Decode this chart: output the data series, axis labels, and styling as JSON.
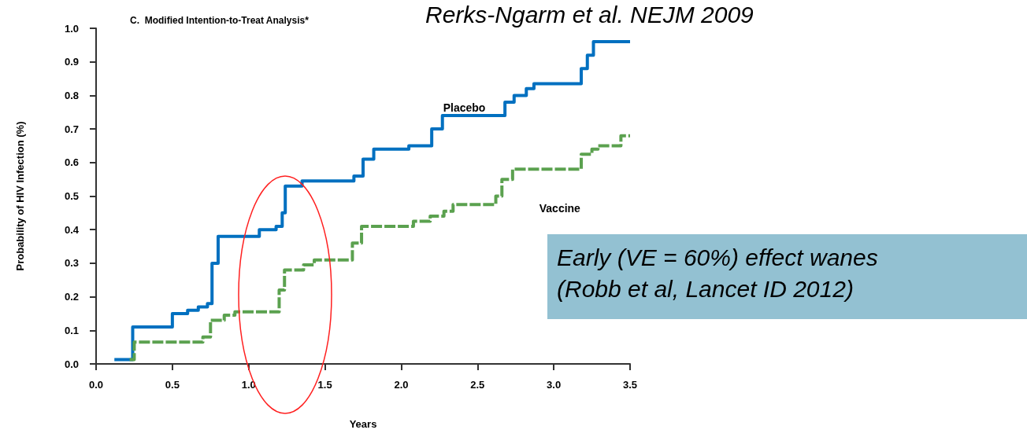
{
  "chart_data": {
    "type": "step",
    "title": "C.  Modified Intention-to-Treat Analysis*",
    "xlabel": "Years",
    "ylabel": "Probability of HIV Infection (%)",
    "annotations": [
      "Rerks-Ngarm et al. NEJM 2009",
      "Early (VE = 60%) effect wanes\n(Robb et al, Lancet ID 2012)"
    ],
    "xlim": [
      0,
      3.5
    ],
    "xticks": [
      {
        "value": 0,
        "label": "0.0"
      },
      0.5,
      {
        "value": 1,
        "label": "1.0"
      },
      1.5,
      {
        "value": 2,
        "label": "2.0"
      },
      2.5,
      {
        "value": 3,
        "label": "3.0"
      },
      3.5
    ],
    "ylim": [
      0,
      1
    ],
    "yticks": [
      {
        "value": 0,
        "label": "0.0"
      },
      0.1,
      0.2,
      0.3,
      0.4,
      0.5,
      0.6,
      0.7,
      0.8,
      0.9,
      {
        "value": 1,
        "label": "1.0"
      }
    ],
    "grid": false,
    "legend": false,
    "marker": "none",
    "series": [
      {
        "name": "Placebo",
        "color": "#0070c0",
        "line_style": "solid",
        "x": [
          0.12,
          0.24,
          0.5,
          0.6,
          0.67,
          0.73,
          0.76,
          0.8,
          1.07,
          1.18,
          1.22,
          1.24,
          1.35,
          1.69,
          1.75,
          1.82,
          2.05,
          2.2,
          2.27,
          2.68,
          2.74,
          2.82,
          2.87,
          3.18,
          3.22,
          3.26,
          3.5
        ],
        "values": [
          0.013,
          0.11,
          0.15,
          0.16,
          0.17,
          0.18,
          0.3,
          0.38,
          0.4,
          0.41,
          0.45,
          0.53,
          0.545,
          0.56,
          0.61,
          0.64,
          0.65,
          0.7,
          0.74,
          0.78,
          0.8,
          0.82,
          0.835,
          0.88,
          0.92,
          0.96,
          0.96
        ]
      },
      {
        "name": "Vaccine",
        "color": "#5ba14f",
        "line_style": "dashed",
        "x": [
          0.22,
          0.25,
          0.7,
          0.75,
          0.84,
          0.91,
          1.2,
          1.235,
          1.36,
          1.43,
          1.68,
          1.74,
          2.08,
          2.19,
          2.28,
          2.34,
          2.62,
          2.66,
          2.73,
          3.18,
          3.25,
          3.29,
          3.44,
          3.5
        ],
        "values": [
          0.013,
          0.065,
          0.08,
          0.13,
          0.145,
          0.155,
          0.22,
          0.28,
          0.295,
          0.31,
          0.36,
          0.41,
          0.425,
          0.44,
          0.455,
          0.475,
          0.5,
          0.55,
          0.58,
          0.625,
          0.64,
          0.65,
          0.68,
          0.68
        ]
      }
    ]
  }
}
